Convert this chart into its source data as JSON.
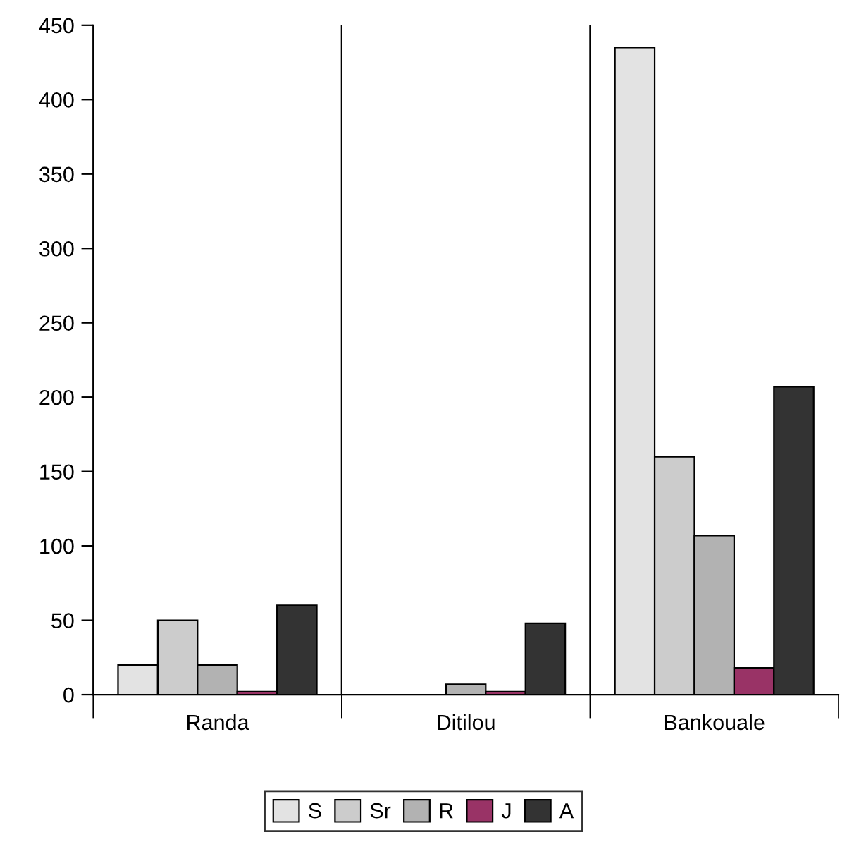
{
  "chart_data": {
    "type": "bar",
    "categories": [
      "Randa",
      "Ditilou",
      "Bankouale"
    ],
    "series": [
      {
        "name": "S",
        "color": "#e3e3e3",
        "values": [
          20,
          0,
          435
        ]
      },
      {
        "name": "Sr",
        "color": "#cccccc",
        "values": [
          50,
          0,
          160
        ]
      },
      {
        "name": "R",
        "color": "#b2b2b2",
        "values": [
          20,
          7,
          107
        ]
      },
      {
        "name": "J",
        "color": "#993366",
        "values": [
          2,
          2,
          18
        ]
      },
      {
        "name": "A",
        "color": "#333333",
        "values": [
          60,
          48,
          207
        ]
      }
    ],
    "ylim": [
      0,
      450
    ],
    "yticks": [
      0,
      50,
      100,
      150,
      200,
      250,
      300,
      350,
      400,
      450
    ],
    "grid": "x",
    "legend": "bottom"
  }
}
